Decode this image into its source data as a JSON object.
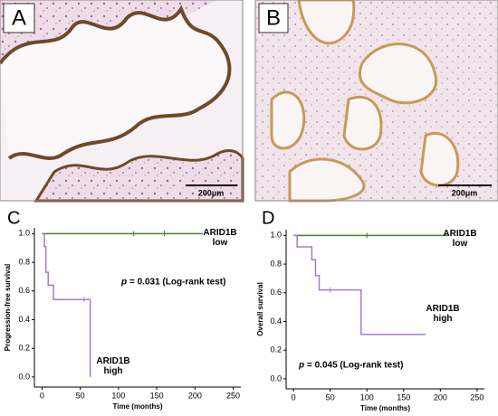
{
  "panels": [
    {
      "label": "A",
      "scale_bar": "200μm"
    },
    {
      "label": "B",
      "scale_bar": "200μm"
    }
  ],
  "chart_data": [
    {
      "type": "line",
      "drawstyle": "steps-post",
      "panel_label": "C",
      "y_label": "Progression-free survival",
      "x_label": "Time (months)",
      "p_symbol": "p",
      "annotation": "= 0.031 (Log-rank test)",
      "xlim": [
        -10,
        260
      ],
      "xticks": [
        0,
        50,
        100,
        150,
        200,
        250
      ],
      "ylim": [
        -0.07,
        1.04
      ],
      "yticks": [
        {
          "value": 0,
          "label": "0.0"
        },
        {
          "value": 0.2,
          "label": "0.2"
        },
        {
          "value": 0.4,
          "label": "0.4"
        },
        {
          "value": 0.6,
          "label": "0.6"
        },
        {
          "value": 0.8,
          "label": "0.8"
        },
        {
          "value": 1,
          "label": "1.0"
        }
      ],
      "series": [
        {
          "name": "ARID1B low",
          "color": "#4f7d2c",
          "x": [
            0,
            210
          ],
          "values": [
            1.0,
            1.0
          ],
          "censored_x": [
            120,
            160
          ]
        },
        {
          "name": "ARID1B high",
          "color": "#a07ae0",
          "x": [
            0,
            3,
            5,
            8,
            15,
            63
          ],
          "values": [
            1.0,
            0.91,
            0.73,
            0.64,
            0.54,
            0.0
          ],
          "censored_x": [
            55
          ]
        }
      ]
    },
    {
      "type": "line",
      "drawstyle": "steps-post",
      "panel_label": "D",
      "y_label": "Overall survival",
      "x_label": "Time (months)",
      "p_symbol": "p",
      "annotation": "= 0.045 (Log-rank test)",
      "xlim": [
        -10,
        260
      ],
      "xticks": [
        0,
        50,
        100,
        150,
        200,
        250
      ],
      "ylim": [
        -0.07,
        1.04
      ],
      "yticks": [
        {
          "value": 0,
          "label": "0.0"
        },
        {
          "value": 0.2,
          "label": "0.2"
        },
        {
          "value": 0.4,
          "label": "0.4"
        },
        {
          "value": 0.6,
          "label": "0.6"
        },
        {
          "value": 0.8,
          "label": "0.8"
        },
        {
          "value": 1,
          "label": "1.0"
        }
      ],
      "series": [
        {
          "name": "ARID1B low",
          "color": "#4f7d2c",
          "x": [
            0,
            210
          ],
          "values": [
            1.0,
            1.0
          ],
          "censored_x": [
            100
          ]
        },
        {
          "name": "ARID1B high",
          "color": "#a07ae0",
          "x": [
            0,
            5,
            25,
            30,
            35,
            92,
            180
          ],
          "values": [
            1.0,
            0.92,
            0.83,
            0.72,
            0.62,
            0.31,
            0.31
          ],
          "censored_x": [
            50
          ]
        }
      ]
    }
  ]
}
